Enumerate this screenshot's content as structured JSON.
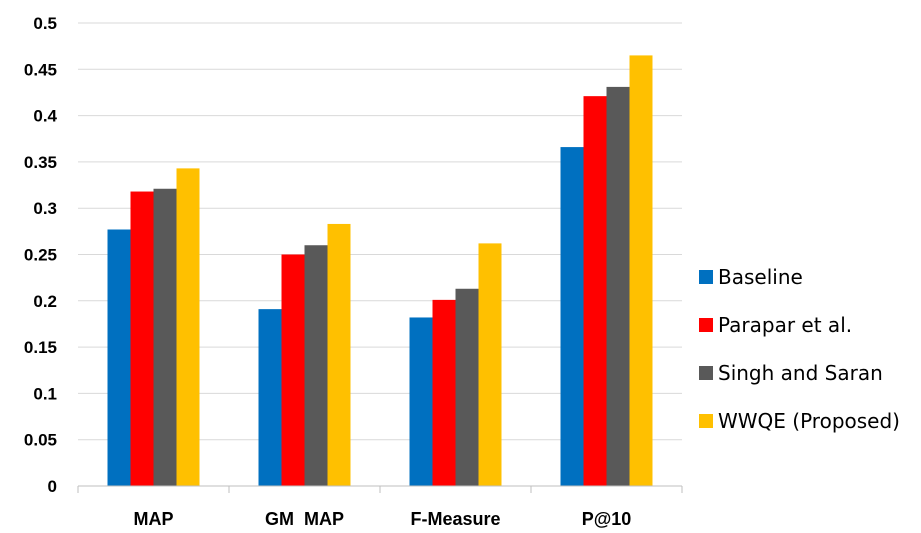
{
  "chart_data": {
    "type": "bar",
    "title": "",
    "xlabel": "",
    "ylabel": "",
    "ylim": [
      0,
      0.5
    ],
    "yticks": [
      "0",
      "0.05",
      "0.1",
      "0.15",
      "0.2",
      "0.25",
      "0.3",
      "0.35",
      "0.4",
      "0.45",
      "0.5"
    ],
    "grid": "horizontal",
    "legend_position": "right",
    "categories": [
      "MAP",
      "GM  MAP",
      "F-Measure",
      "P@10"
    ],
    "series": [
      {
        "name": "Baseline",
        "color": "#0070C0",
        "values": [
          0.277,
          0.191,
          0.182,
          0.366
        ]
      },
      {
        "name": "Parapar et al.",
        "color": "#FF0000",
        "values": [
          0.318,
          0.25,
          0.201,
          0.421
        ]
      },
      {
        "name": "Singh and Saran",
        "color": "#595959",
        "values": [
          0.321,
          0.26,
          0.213,
          0.431
        ]
      },
      {
        "name": "WWQE (Proposed)",
        "color": "#FFC000",
        "values": [
          0.343,
          0.283,
          0.262,
          0.465
        ]
      }
    ]
  }
}
